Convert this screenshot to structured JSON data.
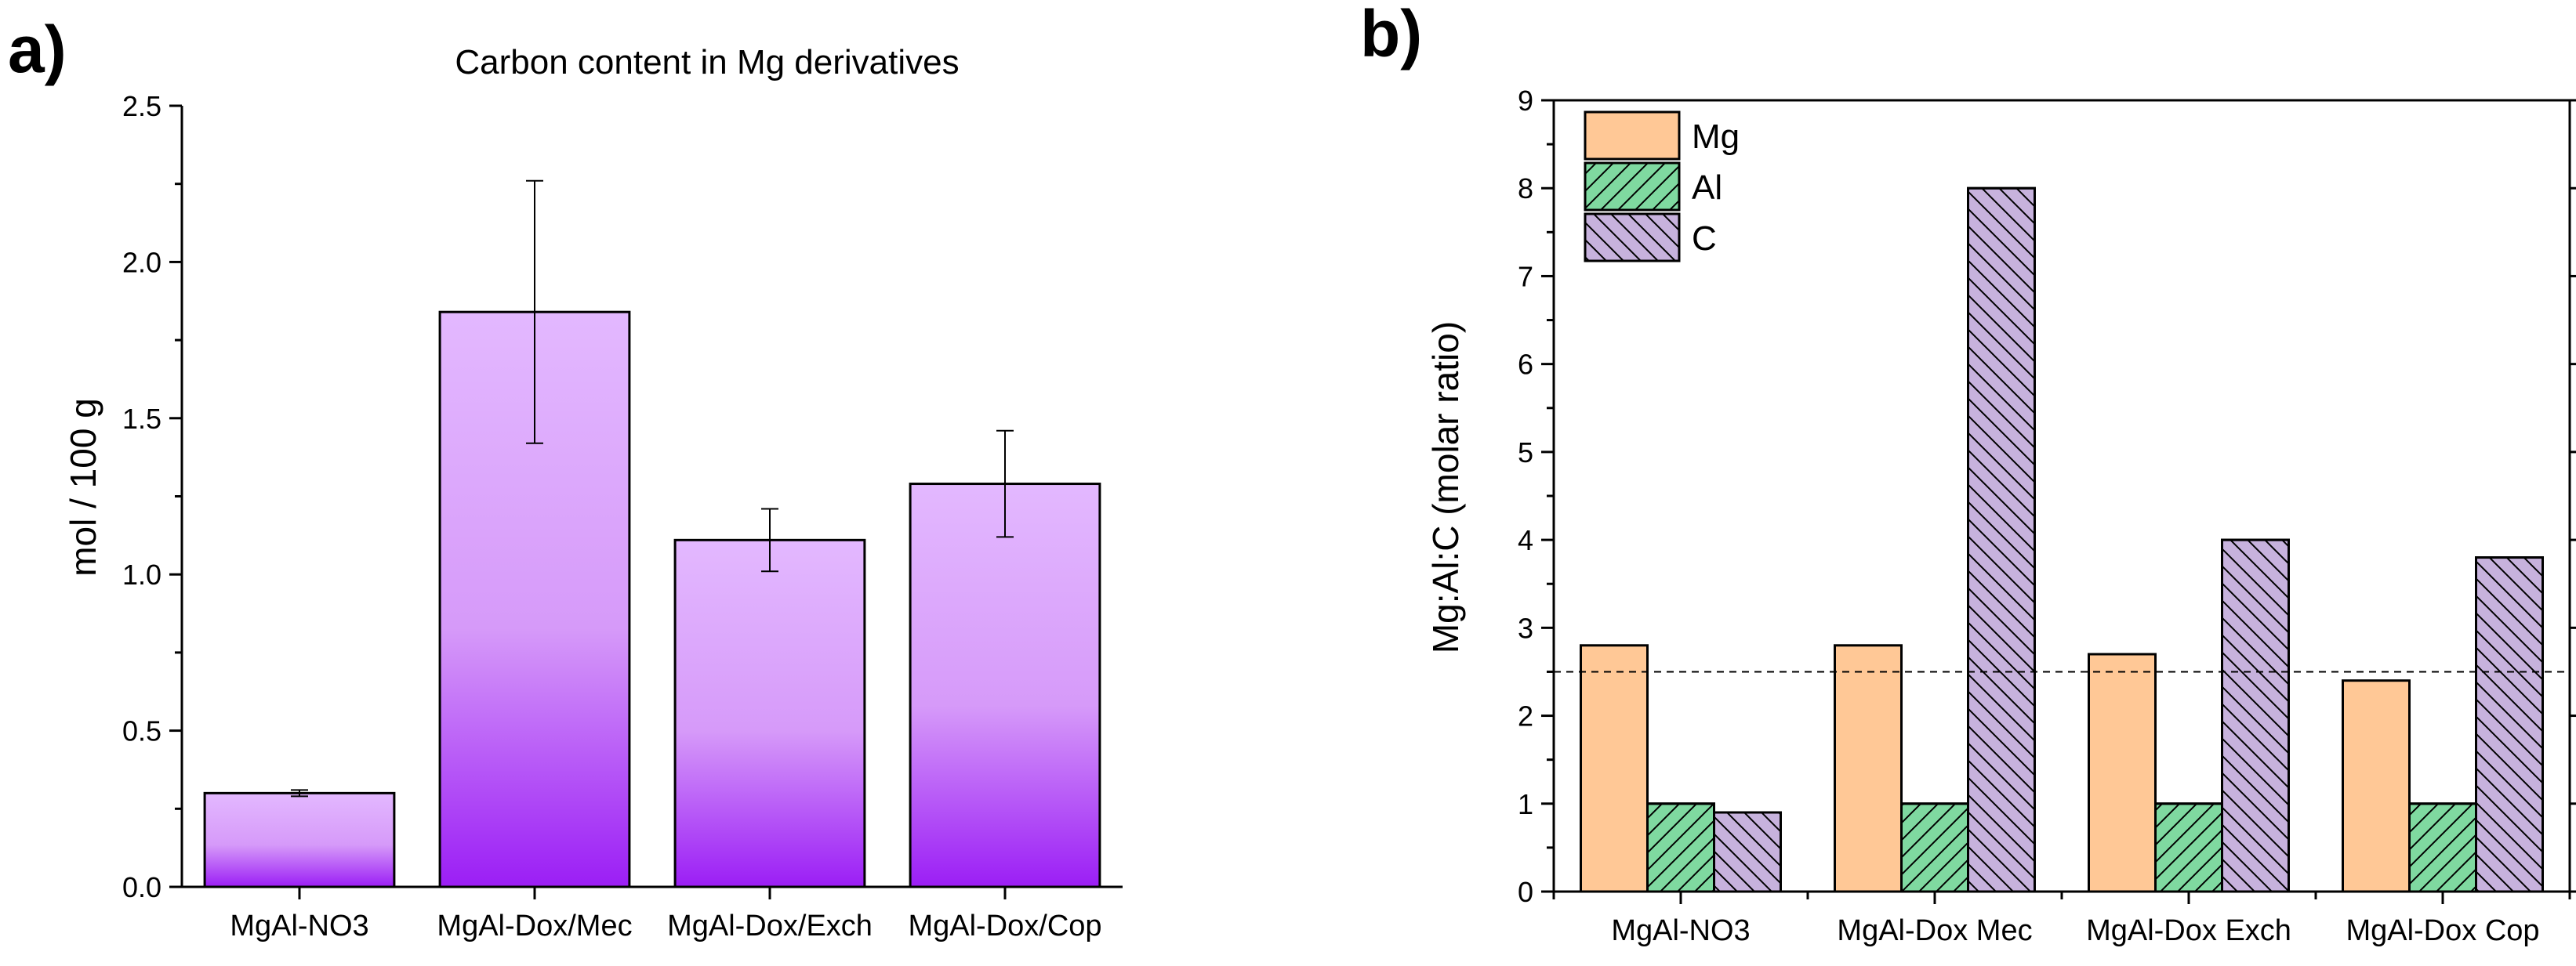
{
  "panels": {
    "a": {
      "letter": "a)"
    },
    "b": {
      "letter": "b)"
    }
  },
  "chart_data": [
    {
      "panel": "a",
      "type": "bar",
      "title": "Carbon content in Mg derivatives",
      "xlabel": "",
      "ylabel": "mol / 100 g",
      "ylim": [
        0,
        2.5
      ],
      "yticks": [
        0.0,
        0.5,
        1.0,
        1.5,
        2.0,
        2.5
      ],
      "ytick_labels": [
        "0.0",
        "0.5",
        "1.0",
        "1.5",
        "2.0",
        "2.5"
      ],
      "categories": [
        "MgAl-NO3",
        "MgAl-Dox/Mec",
        "MgAl-Dox/Exch",
        "MgAl-Dox/Cop"
      ],
      "values": [
        0.3,
        1.84,
        1.11,
        1.29
      ],
      "errors": [
        0.01,
        0.42,
        0.1,
        0.17
      ],
      "colors": {
        "bar_top": "#e3b8ff",
        "bar_bottom": "#9b1ef5",
        "stroke": "#000000"
      },
      "grid": false
    },
    {
      "panel": "b",
      "type": "bar",
      "title": "",
      "xlabel": "",
      "ylabel": "Mg:Al:C (molar ratio)",
      "ylim": [
        0,
        9
      ],
      "yticks": [
        0,
        1,
        2,
        3,
        4,
        5,
        6,
        7,
        8,
        9
      ],
      "ytick_labels": [
        "0",
        "1",
        "2",
        "3",
        "4",
        "5",
        "6",
        "7",
        "8",
        "9"
      ],
      "categories": [
        "MgAl-NO3",
        "MgAl-Dox Mec",
        "MgAl-Dox Exch",
        "MgAl-Dox Cop"
      ],
      "series": [
        {
          "name": "Mg",
          "values": [
            2.8,
            2.8,
            2.7,
            2.4
          ],
          "color": "#ffc896",
          "pattern": "none"
        },
        {
          "name": "Al",
          "values": [
            1.0,
            1.0,
            1.0,
            1.0
          ],
          "color": "#7fd9a0",
          "pattern": "hatch-right"
        },
        {
          "name": "C",
          "values": [
            0.9,
            8.0,
            4.0,
            3.8
          ],
          "color": "#c7b2dd",
          "pattern": "hatch-left"
        }
      ],
      "reference_line": {
        "y": 2.5,
        "style": "dashed"
      },
      "legend_position": "top-left",
      "grid": false
    }
  ]
}
